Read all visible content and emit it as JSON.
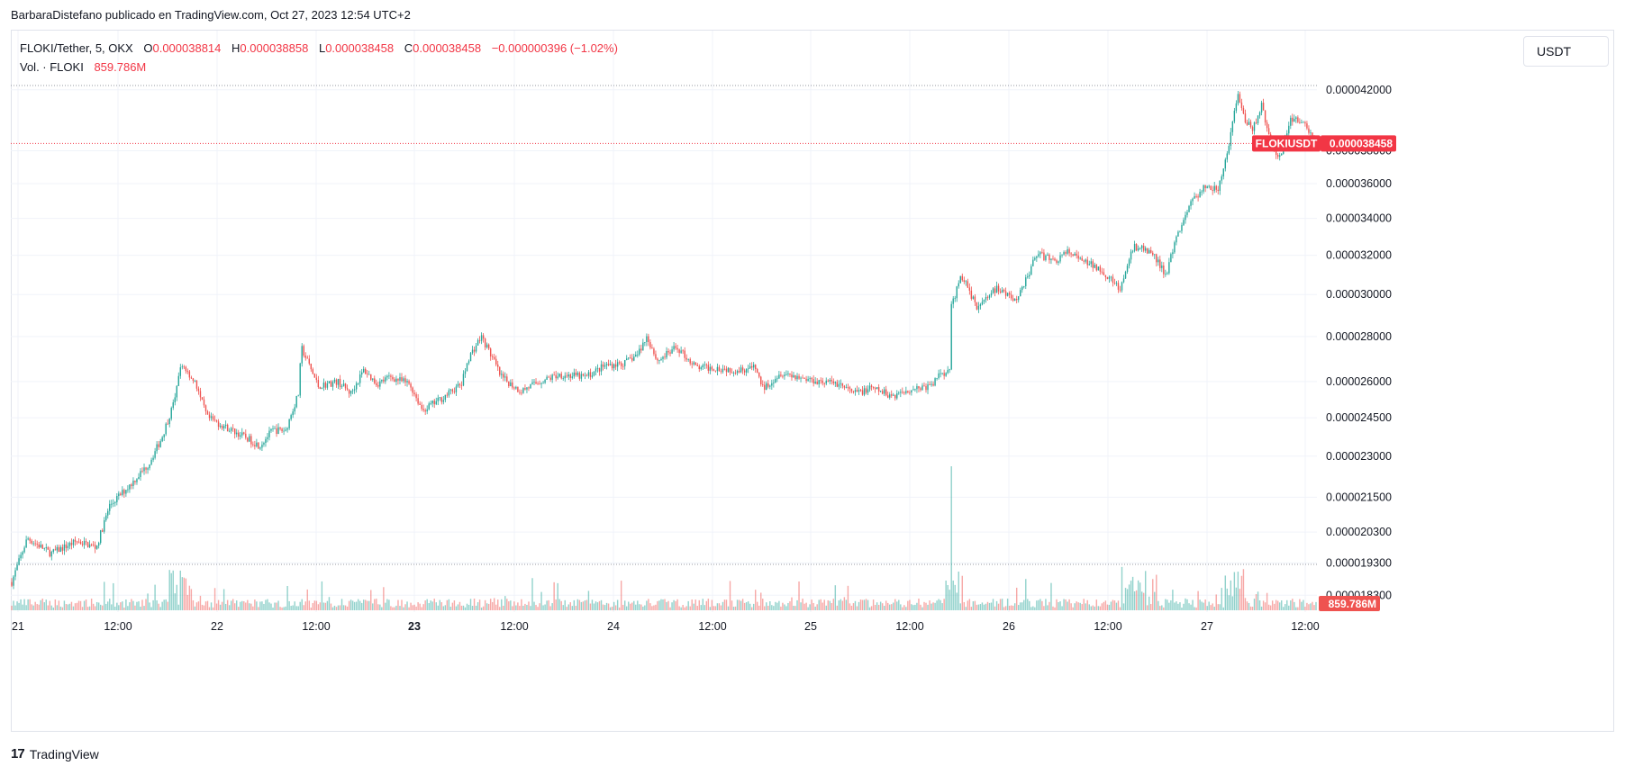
{
  "header": {
    "publisher_line": "BarbaraDistefano publicado en TradingView.com, Oct 27, 2023 12:54 UTC+2"
  },
  "legend": {
    "symbol": "FLOKI/Tether, 5, OKX",
    "o_label": "O",
    "o_value": "0.000038814",
    "h_label": "H",
    "h_value": "0.000038858",
    "l_label": "L",
    "l_value": "0.000038458",
    "c_label": "C",
    "c_value": "0.000038458",
    "change": "−0.000000396 (−1.02%)",
    "volume_label": "Vol. · FLOKI",
    "volume_value": "859.786M"
  },
  "currency_button": "USDT",
  "footer": {
    "logo": "17",
    "brand": "TradingView"
  },
  "colors": {
    "up": "#26a69a",
    "down": "#ef5350",
    "price_tag": "#f23645",
    "grid": "#f0f3fa"
  },
  "chart_data": {
    "type": "candlestick",
    "symbol_tag": "FLOKIUSDT",
    "last_price": "0.000038458",
    "last_volume": "859.786M",
    "y_scale": "log",
    "y_ticks": [
      "0.000042000",
      "0.000038000",
      "0.000036000",
      "0.000034000",
      "0.000032000",
      "0.000030000",
      "0.000028000",
      "0.000026000",
      "0.000024500",
      "0.000023000",
      "0.000021500",
      "0.000020300",
      "0.000019300",
      "0.000018300"
    ],
    "x_ticks": [
      "21",
      "12:00",
      "22",
      "12:00",
      "23",
      "12:00",
      "24",
      "12:00",
      "25",
      "12:00",
      "26",
      "12:00",
      "27",
      "12:00"
    ],
    "x_ticks_bold": [
      false,
      false,
      false,
      false,
      true,
      false,
      false,
      false,
      false,
      false,
      false,
      false,
      false,
      false
    ],
    "price_path": [
      [
        0,
        1.87e-05
      ],
      [
        0.012,
        2.01e-05
      ],
      [
        0.03,
        1.96e-05
      ],
      [
        0.05,
        2e-05
      ],
      [
        0.065,
        1.98e-05
      ],
      [
        0.075,
        2.12e-05
      ],
      [
        0.09,
        2.19e-05
      ],
      [
        0.105,
        2.27e-05
      ],
      [
        0.115,
        2.37e-05
      ],
      [
        0.125,
        2.52e-05
      ],
      [
        0.13,
        2.68e-05
      ],
      [
        0.14,
        2.6e-05
      ],
      [
        0.15,
        2.45e-05
      ],
      [
        0.165,
        2.41e-05
      ],
      [
        0.18,
        2.37e-05
      ],
      [
        0.19,
        2.34e-05
      ],
      [
        0.2,
        2.4e-05
      ],
      [
        0.21,
        2.4e-05
      ],
      [
        0.22,
        2.55e-05
      ],
      [
        0.222,
        2.75e-05
      ],
      [
        0.235,
        2.58e-05
      ],
      [
        0.25,
        2.6e-05
      ],
      [
        0.26,
        2.55e-05
      ],
      [
        0.27,
        2.65e-05
      ],
      [
        0.28,
        2.59e-05
      ],
      [
        0.29,
        2.62e-05
      ],
      [
        0.305,
        2.59e-05
      ],
      [
        0.315,
        2.48e-05
      ],
      [
        0.33,
        2.53e-05
      ],
      [
        0.345,
        2.59e-05
      ],
      [
        0.35,
        2.7e-05
      ],
      [
        0.36,
        2.8e-05
      ],
      [
        0.368,
        2.71e-05
      ],
      [
        0.375,
        2.62e-05
      ],
      [
        0.39,
        2.56e-05
      ],
      [
        0.405,
        2.6e-05
      ],
      [
        0.42,
        2.63e-05
      ],
      [
        0.44,
        2.62e-05
      ],
      [
        0.455,
        2.67e-05
      ],
      [
        0.47,
        2.68e-05
      ],
      [
        0.48,
        2.72e-05
      ],
      [
        0.487,
        2.8e-05
      ],
      [
        0.495,
        2.69e-05
      ],
      [
        0.51,
        2.75e-05
      ],
      [
        0.525,
        2.66e-05
      ],
      [
        0.54,
        2.66e-05
      ],
      [
        0.555,
        2.65e-05
      ],
      [
        0.57,
        2.66e-05
      ],
      [
        0.576,
        2.57e-05
      ],
      [
        0.59,
        2.64e-05
      ],
      [
        0.61,
        2.61e-05
      ],
      [
        0.635,
        2.59e-05
      ],
      [
        0.645,
        2.55e-05
      ],
      [
        0.66,
        2.57e-05
      ],
      [
        0.675,
        2.54e-05
      ],
      [
        0.69,
        2.57e-05
      ],
      [
        0.705,
        2.58e-05
      ],
      [
        0.712,
        2.64e-05
      ],
      [
        0.72,
        2.64e-05
      ],
      [
        0.7195,
        2.92e-05
      ],
      [
        0.728,
        3.1e-05
      ],
      [
        0.74,
        2.94e-05
      ],
      [
        0.755,
        3.03e-05
      ],
      [
        0.77,
        2.97e-05
      ],
      [
        0.78,
        3.11e-05
      ],
      [
        0.785,
        3.21e-05
      ],
      [
        0.8,
        3.17e-05
      ],
      [
        0.81,
        3.22e-05
      ],
      [
        0.82,
        3.17e-05
      ],
      [
        0.835,
        3.13e-05
      ],
      [
        0.85,
        3.02e-05
      ],
      [
        0.86,
        3.25e-05
      ],
      [
        0.875,
        3.21e-05
      ],
      [
        0.885,
        3.09e-05
      ],
      [
        0.893,
        3.3e-05
      ],
      [
        0.905,
        3.5e-05
      ],
      [
        0.915,
        3.58e-05
      ],
      [
        0.925,
        3.56e-05
      ],
      [
        0.933,
        3.82e-05
      ],
      [
        0.94,
        4.16e-05
      ],
      [
        0.945,
        4e-05
      ],
      [
        0.952,
        3.94e-05
      ],
      [
        0.958,
        4.1e-05
      ],
      [
        0.965,
        3.86e-05
      ],
      [
        0.972,
        3.75e-05
      ],
      [
        0.98,
        3.99e-05
      ],
      [
        0.99,
        4e-05
      ],
      [
        1,
        3.85e-05
      ]
    ]
  }
}
